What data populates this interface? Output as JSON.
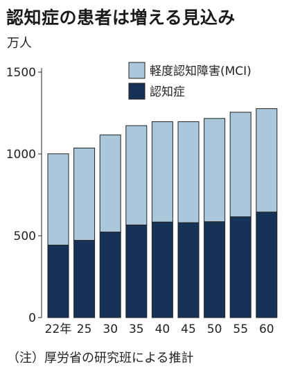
{
  "title": "認知症の患者は増える見込み",
  "unit": "万人",
  "note": "（注）厚労省の研究班による推計",
  "colors": {
    "mci": "#aac7db",
    "dementia": "#163256",
    "bar_border": "#222222",
    "axis": "#222222"
  },
  "chart_data": {
    "type": "bar",
    "stacked": true,
    "categories": [
      "22年",
      "25",
      "30",
      "35",
      "40",
      "45",
      "50",
      "55",
      "60"
    ],
    "series": [
      {
        "name": "認知症",
        "values": [
          443,
          472,
          523,
          566,
          584,
          580,
          586,
          616,
          645
        ]
      },
      {
        "name": "軽度認知障害(MCI)",
        "values": [
          558,
          564,
          593,
          607,
          613,
          617,
          631,
          639,
          632
        ]
      }
    ],
    "ylim": [
      0,
      1500
    ],
    "yticks": [
      0,
      500,
      1000,
      1500
    ],
    "ylabel": "万人",
    "xlabel": "",
    "legend": "top-right",
    "grid": false
  }
}
